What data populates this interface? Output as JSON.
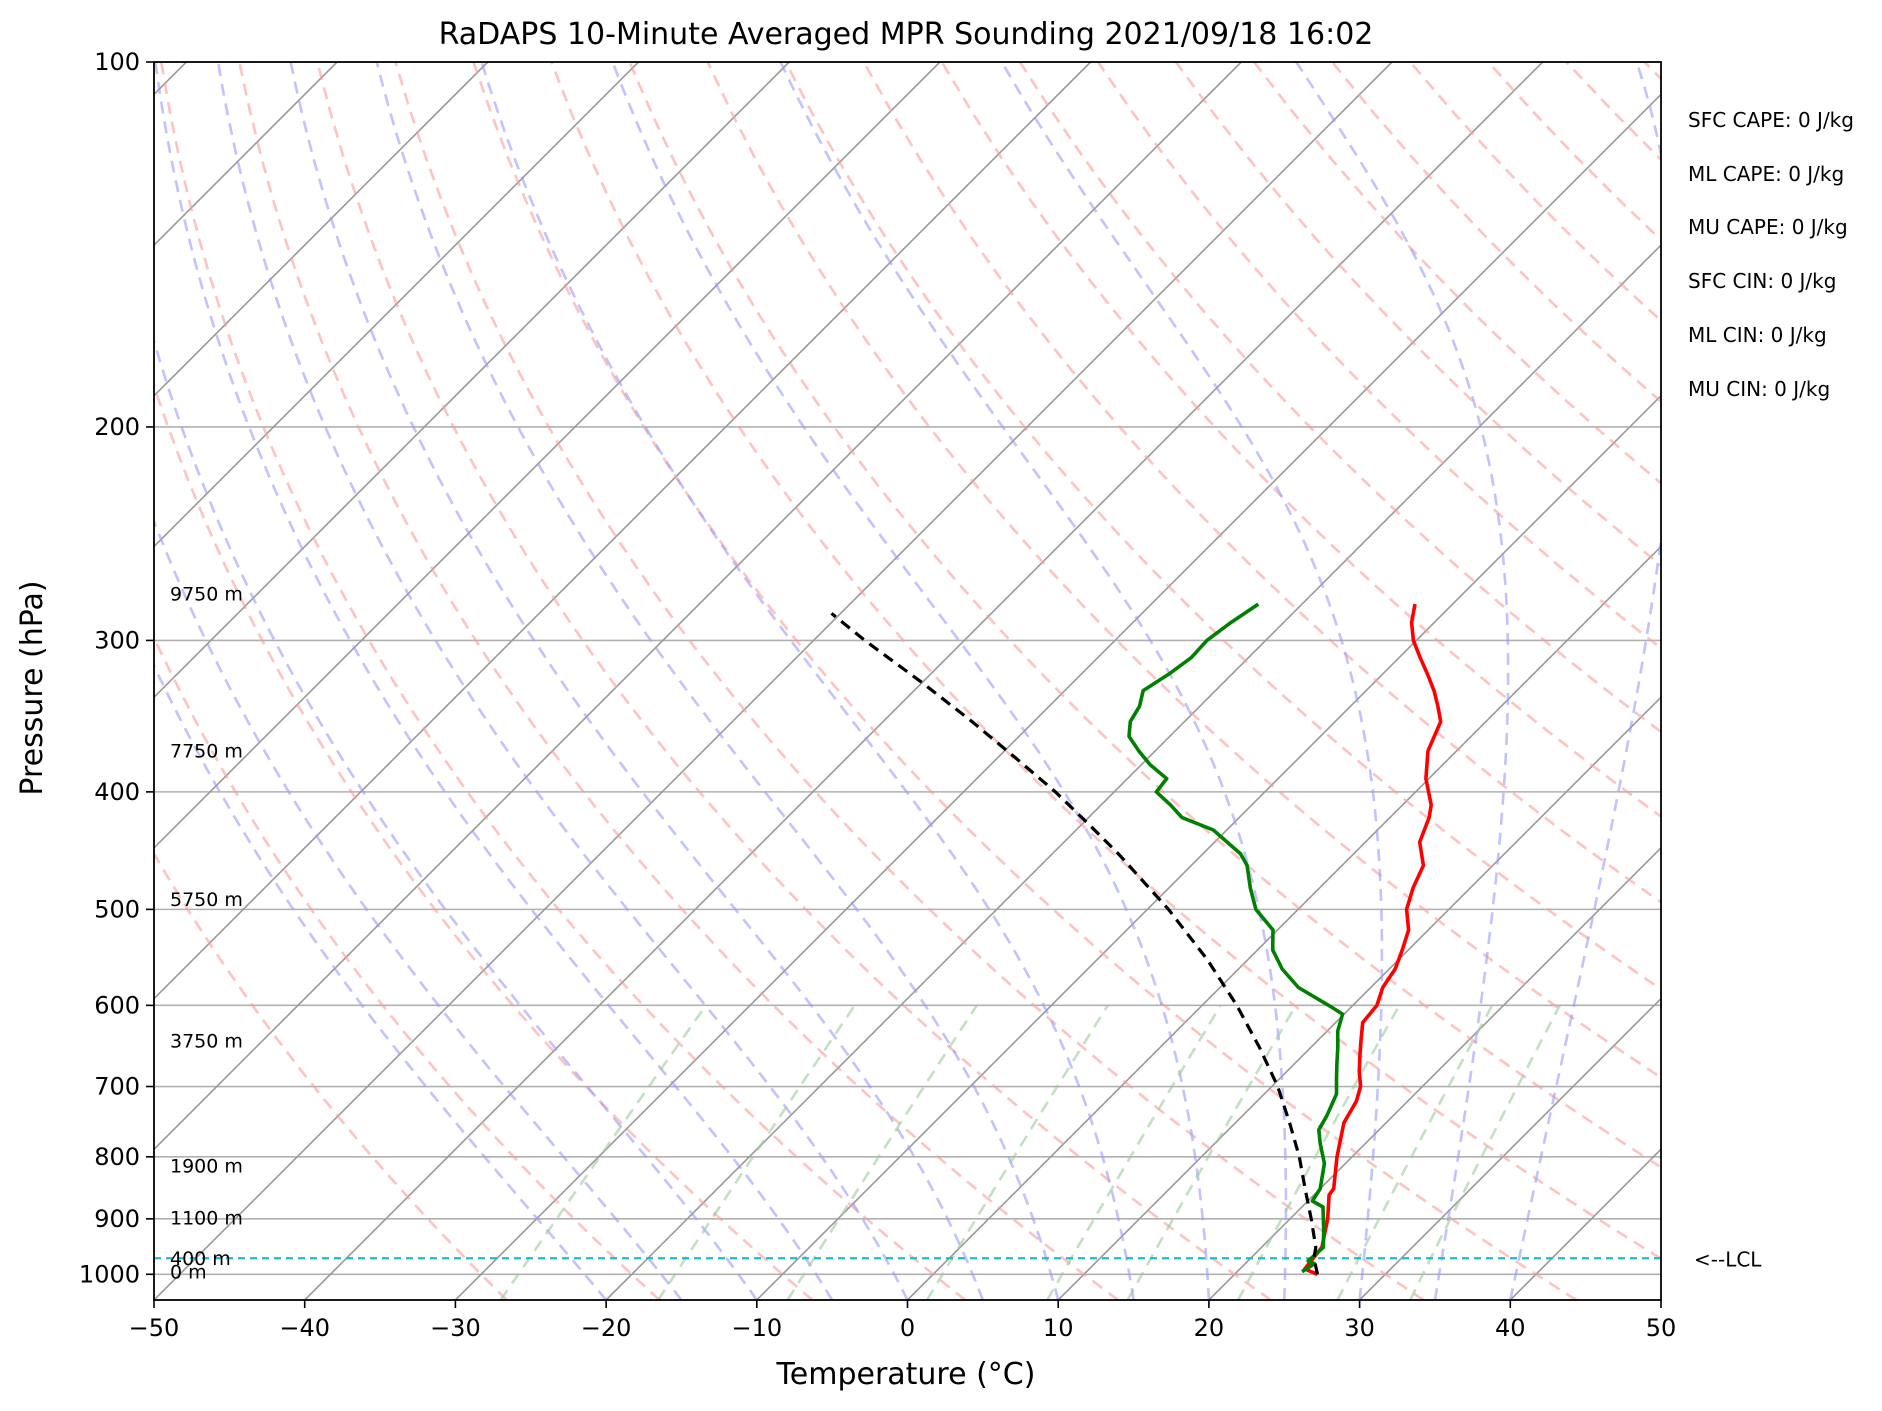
{
  "chart_data": {
    "type": "line",
    "title": "RaDAPS 10-Minute Averaged MPR Sounding 2021/09/18 16:02",
    "xlabel": "Temperature (°C)",
    "ylabel": "Pressure (hPa)",
    "xlim": [
      -50,
      50
    ],
    "ylim": [
      1050,
      100
    ],
    "y_scale": "log",
    "grid": true,
    "x_ticks": [
      "−50",
      "−40",
      "−30",
      "−20",
      "−10",
      "0",
      "10",
      "20",
      "30",
      "40",
      "50"
    ],
    "y_ticks": [
      "100",
      "200",
      "300",
      "400",
      "500",
      "600",
      "700",
      "800",
      "900",
      "1000"
    ],
    "series": [
      {
        "color": "#ff0000",
        "points": [
          [
            25.5,
            1000
          ],
          [
            24.3,
            990
          ],
          [
            24.0,
            950
          ],
          [
            22.5,
            900
          ],
          [
            21.0,
            860
          ],
          [
            20.9,
            850
          ],
          [
            19.0,
            800
          ],
          [
            17.2,
            750
          ],
          [
            16.6,
            720
          ],
          [
            15.9,
            700
          ],
          [
            14.8,
            680
          ],
          [
            13.8,
            660
          ],
          [
            12.8,
            640
          ],
          [
            11.8,
            620
          ],
          [
            11.6,
            600
          ],
          [
            10.8,
            580
          ],
          [
            10.4,
            560
          ],
          [
            9.6,
            540
          ],
          [
            8.7,
            520
          ],
          [
            7.2,
            500
          ],
          [
            6.2,
            480
          ],
          [
            5.4,
            460
          ],
          [
            3.6,
            440
          ],
          [
            2.6,
            420
          ],
          [
            1.9,
            410
          ],
          [
            -0.2,
            390
          ],
          [
            -1.9,
            370
          ],
          [
            -3.0,
            350
          ],
          [
            -4.2,
            340
          ],
          [
            -5.5,
            330
          ],
          [
            -7.0,
            320
          ],
          [
            -8.6,
            310
          ],
          [
            -10.2,
            300
          ],
          [
            -11.5,
            290
          ],
          [
            -12.5,
            280
          ]
        ]
      },
      {
        "color": "#008000",
        "points": [
          [
            24.3,
            995
          ],
          [
            24.6,
            980
          ],
          [
            24.0,
            975
          ],
          [
            24.1,
            950
          ],
          [
            23.0,
            920
          ],
          [
            21.4,
            880
          ],
          [
            20.3,
            870
          ],
          [
            20.0,
            850
          ],
          [
            18.6,
            810
          ],
          [
            17.0,
            780
          ],
          [
            16.0,
            760
          ],
          [
            15.6,
            740
          ],
          [
            14.8,
            710
          ],
          [
            13.8,
            690
          ],
          [
            12.8,
            670
          ],
          [
            11.8,
            650
          ],
          [
            10.7,
            630
          ],
          [
            9.9,
            610
          ],
          [
            8.4,
            600
          ],
          [
            5.2,
            580
          ],
          [
            2.9,
            560
          ],
          [
            1.0,
            540
          ],
          [
            -0.3,
            520
          ],
          [
            -2.8,
            500
          ],
          [
            -4.6,
            480
          ],
          [
            -6.3,
            460
          ],
          [
            -7.5,
            450
          ],
          [
            -10.9,
            430
          ],
          [
            -13.8,
            420
          ],
          [
            -15.4,
            410
          ],
          [
            -17.2,
            400
          ],
          [
            -17.4,
            390
          ],
          [
            -19.4,
            380
          ],
          [
            -21.1,
            370
          ],
          [
            -22.7,
            360
          ],
          [
            -23.6,
            350
          ],
          [
            -24.0,
            340
          ],
          [
            -24.8,
            330
          ],
          [
            -24.2,
            320
          ],
          [
            -23.8,
            310
          ],
          [
            -23.9,
            300
          ],
          [
            -23.5,
            290
          ],
          [
            -22.9,
            280
          ]
        ]
      },
      {
        "color": "#000000",
        "dashed": true,
        "points": [
          [
            25.5,
            1000
          ],
          [
            24.2,
            970
          ],
          [
            23.6,
            950
          ],
          [
            21.4,
            900
          ],
          [
            19.0,
            850
          ],
          [
            16.5,
            800
          ],
          [
            13.6,
            750
          ],
          [
            10.4,
            700
          ],
          [
            6.6,
            650
          ],
          [
            2.3,
            600
          ],
          [
            -2.7,
            550
          ],
          [
            -8.6,
            500
          ],
          [
            -15.6,
            450
          ],
          [
            -19.6,
            425
          ],
          [
            -23.9,
            400
          ],
          [
            -28.8,
            375
          ],
          [
            -34.1,
            350
          ],
          [
            -40.0,
            325
          ],
          [
            -46.6,
            300
          ],
          [
            -50.6,
            285
          ]
        ]
      }
    ],
    "height_labels": [
      {
        "label": "9750 m",
        "p": 276
      },
      {
        "label": "7750 m",
        "p": 372
      },
      {
        "label": "5750 m",
        "p": 493
      },
      {
        "label": "3750 m",
        "p": 645
      },
      {
        "label": "1900 m",
        "p": 818
      },
      {
        "label": "1100 m",
        "p": 903
      },
      {
        "label": "400 m",
        "p": 975
      },
      {
        "label": "0 m",
        "p": 1000
      }
    ],
    "lcl": {
      "label": "<--LCL",
      "p": 970
    }
  },
  "stats": [
    "SFC CAPE: 0 J/kg",
    "ML CAPE: 0 J/kg",
    "MU CAPE: 0 J/kg",
    "SFC CIN: 0 J/kg",
    "ML CIN: 0 J/kg",
    "MU CIN: 0 J/kg"
  ],
  "colors": {
    "dry_adiabat": "#ff9999",
    "moist_adiabat": "#9999ff",
    "mixing_ratio": "#99cc99",
    "isotherm": "#999999",
    "lcl_line": "#17becf"
  }
}
